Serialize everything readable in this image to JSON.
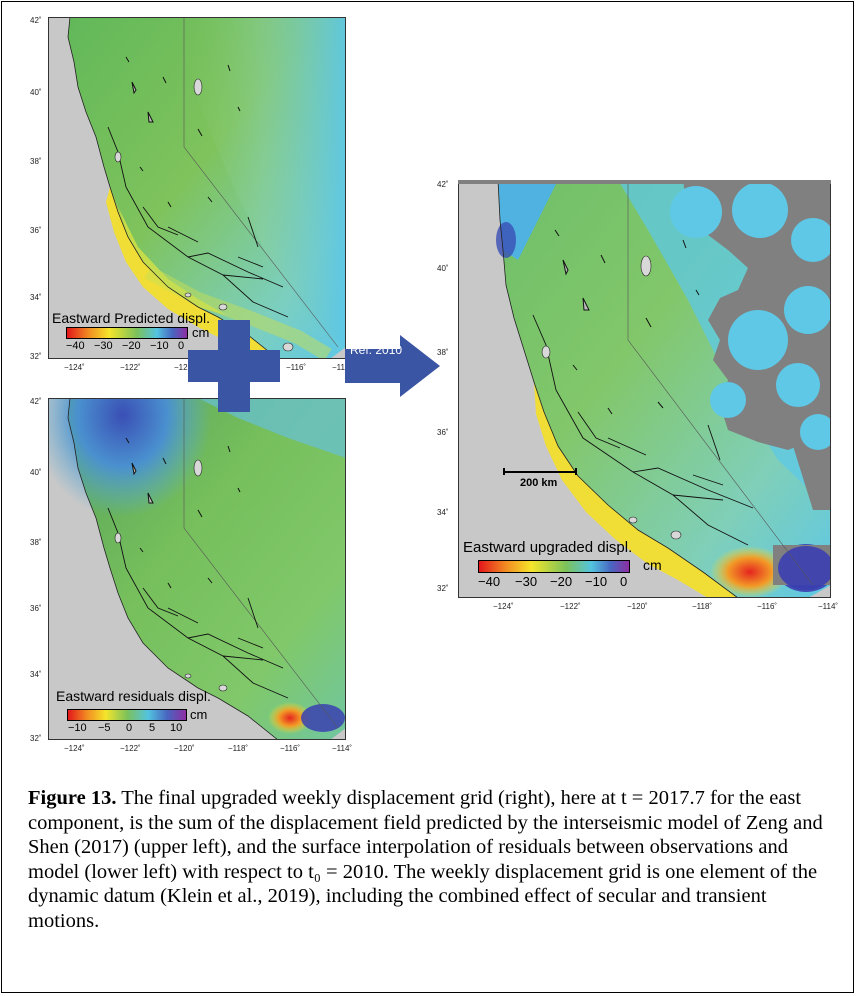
{
  "figure": {
    "caption_label": "Figure 13.",
    "caption_text": " The final upgraded weekly displacement grid (right), here at t = 2017.7 for the east component, is the sum of the displacement field predicted by the interseismic model of Zeng and Shen (2017) (upper left), and the surface interpolation of residuals between observations and model (lower left) with respect to t₀ = 2010. The weekly displacement grid is one element of the dynamic datum (Klein et al., 2019), including the combined effect of secular and transient motions."
  },
  "panels": {
    "predicted": {
      "colorbar_title": "Eastward Predicted displ.",
      "unit": "cm",
      "colorbar_ticks": [
        "−40",
        "−30",
        "−20",
        "−10",
        "0"
      ],
      "lat_ticks": [
        "42˚",
        "40˚",
        "38˚",
        "36˚",
        "34˚",
        "32˚"
      ],
      "lon_ticks": [
        "−124˚",
        "−122˚",
        "−120˚",
        "−116˚",
        "−114˚"
      ]
    },
    "residuals": {
      "colorbar_title": "Eastward residuals displ.",
      "unit": "cm",
      "colorbar_ticks": [
        "−10",
        "−5",
        "0",
        "5",
        "10"
      ],
      "lat_ticks": [
        "42˚",
        "40˚",
        "38˚",
        "36˚",
        "34˚",
        "32˚"
      ],
      "lon_ticks": [
        "−124˚",
        "−122˚",
        "−120˚",
        "−118˚",
        "−116˚",
        "−114˚"
      ]
    },
    "upgraded": {
      "colorbar_title": "Eastward upgraded displ.",
      "unit": "cm",
      "colorbar_ticks": [
        "−40",
        "−30",
        "−20",
        "−10",
        "0"
      ],
      "lat_ticks": [
        "42˚",
        "40˚",
        "38˚",
        "36˚",
        "34˚",
        "32˚"
      ],
      "lon_ticks": [
        "−124˚",
        "−122˚",
        "−120˚",
        "−118˚",
        "−116˚",
        "−114˚"
      ],
      "scale_bar_label": "200 km"
    }
  },
  "arrow": {
    "label": "Ref. 2010",
    "color": "#3a55a3"
  },
  "plus": {
    "color": "#3a55a3"
  },
  "colors": {
    "land_gray": "#c8c8c8",
    "nodata_gray": "#808080",
    "field_green": "#7cc25a",
    "field_cyan": "#5ec8e6",
    "field_yellow": "#f2e030",
    "field_red": "#e52520",
    "field_blue": "#3b3fb0"
  }
}
